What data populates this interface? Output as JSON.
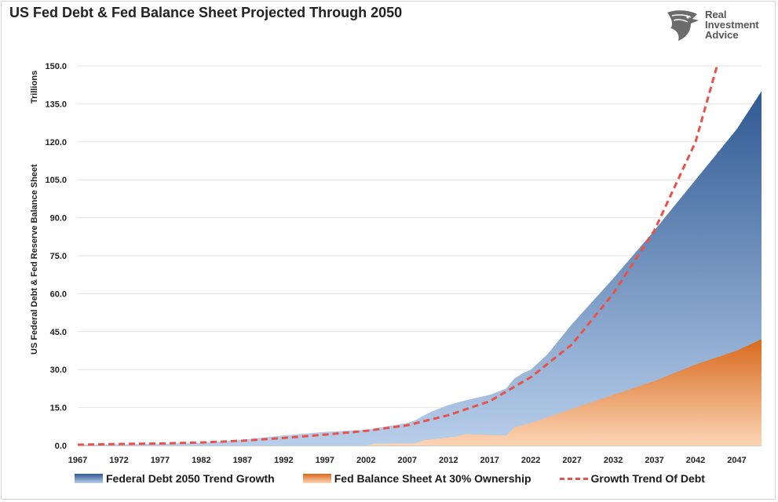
{
  "title": "US Fed Debt & Fed Balance Sheet Projected Through 2050",
  "brand": {
    "line1": "Real",
    "line2": "Investment",
    "line3": "Advice",
    "icon": "eagle-head-icon"
  },
  "colors": {
    "debt_top": "#2f5993",
    "debt_bottom": "#b8cfeb",
    "fed_top": "#d86a1e",
    "fed_bottom": "#fcd5b5",
    "trend": "#e8524a"
  },
  "chart_data": {
    "type": "area",
    "ylabel_top": "Trillions",
    "ylabel": "US Federal Debt & Fed Reserve Balance Sheet",
    "ylim": [
      0,
      150
    ],
    "xlim": [
      1967,
      2050
    ],
    "yticks": [
      "0.0",
      "15.0",
      "30.0",
      "45.0",
      "60.0",
      "75.0",
      "90.0",
      "105.0",
      "120.0",
      "135.0",
      "150.0"
    ],
    "xticks": [
      "1967",
      "1972",
      "1977",
      "1982",
      "1987",
      "1992",
      "1997",
      "2002",
      "2007",
      "2012",
      "2017",
      "2022",
      "2027",
      "2032",
      "2037",
      "2042",
      "2047"
    ],
    "grid": true,
    "legend_position": "bottom",
    "series": [
      {
        "name": "Federal Debt 2050 Trend Growth",
        "x": [
          1967,
          1972,
          1977,
          1982,
          1987,
          1992,
          1997,
          2002,
          2007,
          2008,
          2009,
          2010,
          2012,
          2014,
          2017,
          2019,
          2020,
          2021,
          2022,
          2024,
          2027,
          2032,
          2037,
          2042,
          2047,
          2050
        ],
        "values": [
          0.3,
          0.5,
          0.7,
          1.1,
          2.3,
          4.0,
          5.4,
          6.2,
          8.9,
          10.0,
          11.9,
          13.5,
          16.0,
          17.8,
          20.0,
          22.5,
          26.5,
          28.5,
          30.0,
          36.0,
          48.0,
          66.0,
          85.0,
          105.0,
          125.0,
          140.0
        ]
      },
      {
        "name": "Fed Balance Sheet At 30% Ownership",
        "x": [
          1967,
          2002,
          2003,
          2008,
          2009,
          2011,
          2013,
          2014,
          2019,
          2020,
          2022,
          2027,
          2032,
          2037,
          2042,
          2047,
          2050
        ],
        "values": [
          0.0,
          0.0,
          0.7,
          0.9,
          2.1,
          2.8,
          3.6,
          4.5,
          3.9,
          7.2,
          8.9,
          14.5,
          20.0,
          25.5,
          32.0,
          37.5,
          42.0
        ]
      },
      {
        "name": "Growth Trend Of Debt",
        "x": [
          1967,
          1972,
          1977,
          1982,
          1987,
          1992,
          1997,
          2002,
          2007,
          2012,
          2017,
          2022,
          2027,
          2032,
          2037,
          2042,
          2044.6
        ],
        "values": [
          0.3,
          0.6,
          0.8,
          1.2,
          1.9,
          3.0,
          4.3,
          5.8,
          8.0,
          12.0,
          17.5,
          27.0,
          40.0,
          60.0,
          85.0,
          120.0,
          150.0
        ]
      }
    ]
  }
}
